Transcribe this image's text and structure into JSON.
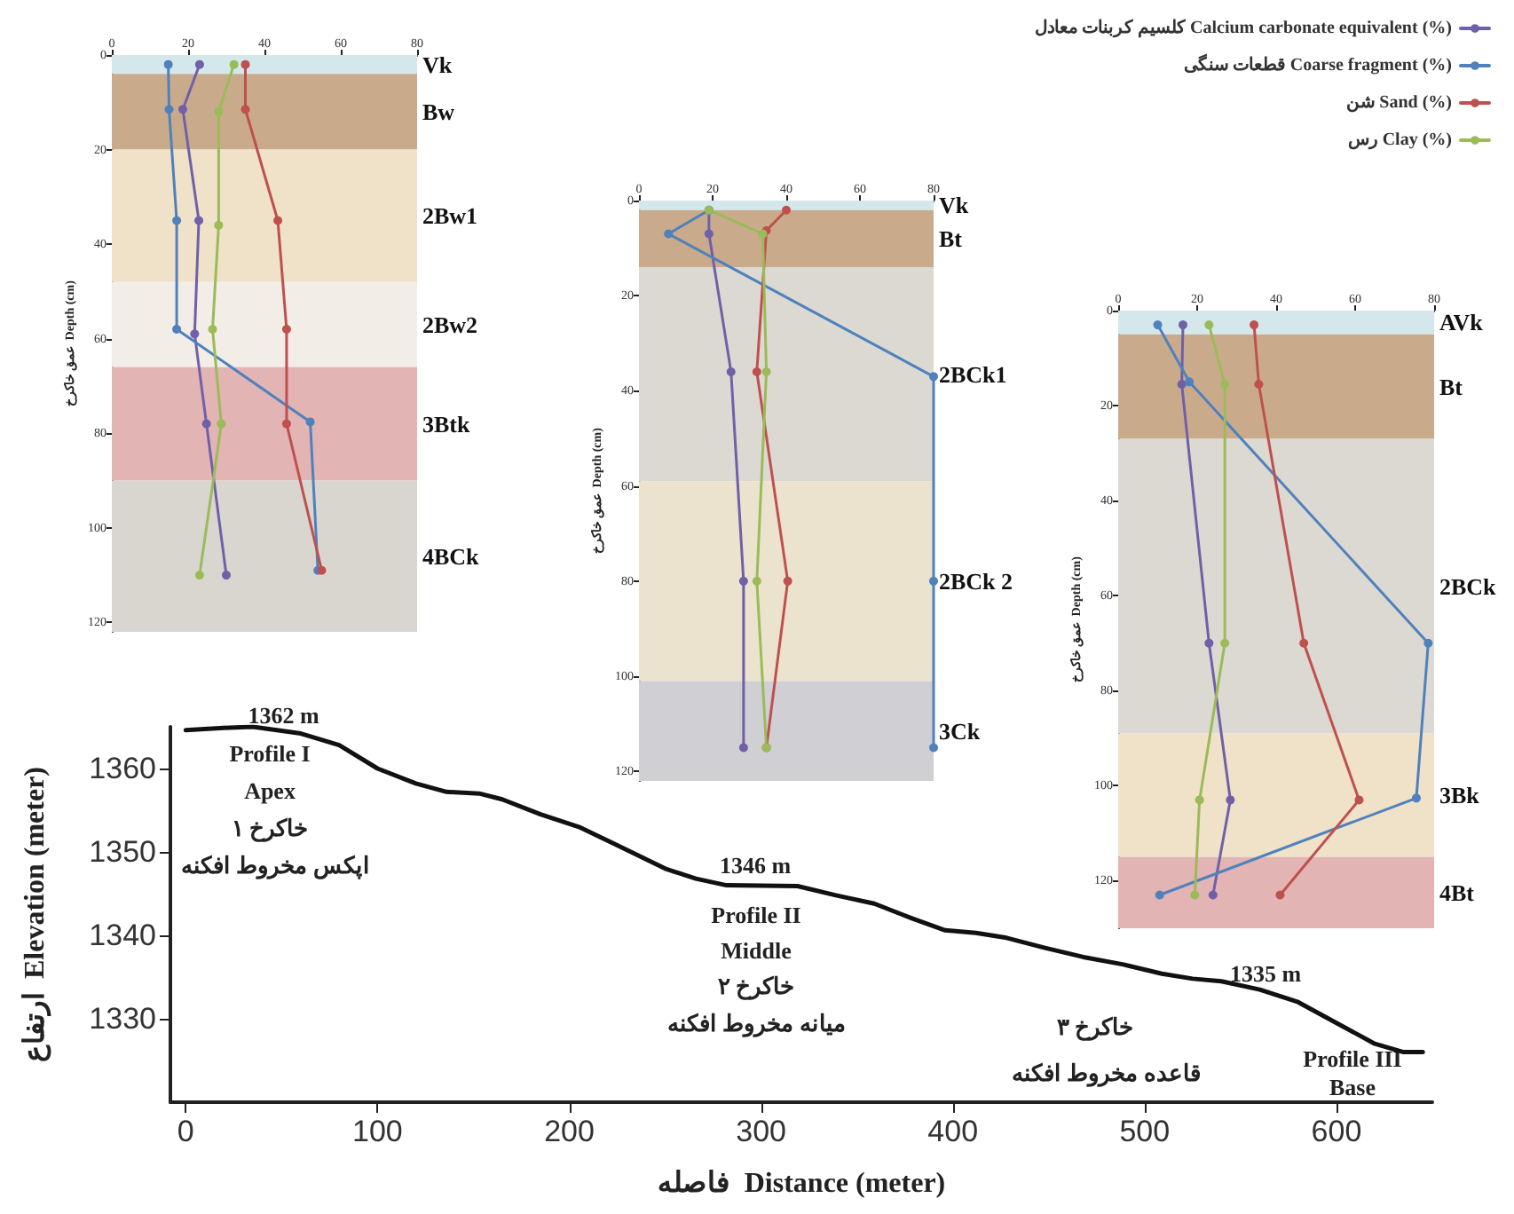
{
  "chart_data": [
    {
      "type": "line",
      "xlabel": "فاصله  Distance (meter)",
      "ylabel": "ارتفاع  Elevation (meter)",
      "xlim": [
        -8,
        650
      ],
      "xticks": [
        0,
        100,
        200,
        300,
        400,
        500,
        600
      ],
      "ylim": [
        1320,
        1365
      ],
      "yticks": [
        1330,
        1340,
        1350,
        1360
      ],
      "grid": false,
      "legend": false,
      "marker": "none",
      "series": [
        {
          "color": "#111111",
          "x": [
            0,
            23,
            35,
            60,
            80,
            100,
            120,
            136,
            153,
            165,
            185,
            205,
            225,
            250,
            266,
            282,
            319,
            339,
            359,
            379,
            396,
            412,
            428,
            448,
            468,
            489,
            509,
            525,
            540,
            560,
            580,
            600,
            620,
            635,
            645
          ],
          "values": [
            1364.6,
            1364.9,
            1365,
            1364.2,
            1362.8,
            1360,
            1358.2,
            1357.2,
            1357,
            1356.3,
            1354.5,
            1353,
            1350.8,
            1348,
            1346.8,
            1346,
            1345.9,
            1344.8,
            1343.8,
            1342,
            1340.6,
            1340.3,
            1339.7,
            1338.5,
            1337.4,
            1336.5,
            1335.4,
            1334.8,
            1334.5,
            1333.5,
            1332,
            1329.5,
            1327,
            1326,
            1326
          ]
        }
      ],
      "annotations": [
        {
          "text": "1362 m",
          "x": 51,
          "y": 1365
        },
        "Profile I",
        "Apex",
        "خاکرخ ۱",
        "اپکس مخروط افکنه",
        {
          "text": "1346 m",
          "x": 297,
          "y": 1347
        },
        "Profile II",
        "Middle",
        "خاکرخ ۲",
        "میانه مخروط افکنه",
        {
          "text": "1335 m",
          "x": 563,
          "y": 1334
        },
        "خاکرخ ۳",
        "Profile III",
        "قاعده مخروط افکنه",
        "Base"
      ]
    },
    {
      "type": "line",
      "ylabel": "عمق خاکرخ  Depth (cm)",
      "xlim": [
        0,
        80
      ],
      "xticks": [
        0,
        20,
        40,
        60,
        80
      ],
      "ylim": [
        122,
        0
      ],
      "yticks": [
        0,
        20,
        40,
        60,
        80,
        100,
        120
      ],
      "grid": false,
      "legend": false,
      "marker": "circle",
      "series": [
        {
          "color": "#7060a8",
          "x": [
            23,
            18.6,
            22.8,
            21.7,
            24.8,
            30
          ],
          "values": [
            2,
            11.5,
            35,
            59,
            78,
            110
          ]
        },
        {
          "color": "#4f81bd",
          "x": [
            14.8,
            15,
            17,
            17,
            52,
            54
          ],
          "values": [
            2,
            11.5,
            35,
            58,
            77.6,
            109
          ]
        },
        {
          "color": "#c0504d",
          "x": [
            35,
            35,
            43.5,
            45.8,
            45.8,
            55
          ],
          "values": [
            2,
            11.5,
            35,
            58,
            78,
            109
          ]
        },
        {
          "color": "#9bbb59",
          "x": [
            32,
            28,
            28,
            26.4,
            28.7,
            23
          ],
          "values": [
            2,
            12,
            36,
            58,
            78,
            110
          ]
        }
      ],
      "bands": [
        {
          "axis": "y",
          "from": 0,
          "to": 4,
          "label": "Vk",
          "color": "#d4e8ec"
        },
        {
          "axis": "y",
          "from": 4,
          "to": 20,
          "label": "Bw",
          "color": "#c9ab8c"
        },
        {
          "axis": "y",
          "from": 20,
          "to": 48,
          "label": "2Bw1",
          "color": "#efe2c8"
        },
        {
          "axis": "y",
          "from": 48,
          "to": 66,
          "label": "2Bw2",
          "color": "#f2ede6"
        },
        {
          "axis": "y",
          "from": 66,
          "to": 90,
          "label": "3Btk",
          "color": "#e2b4b4"
        },
        {
          "axis": "y",
          "from": 90,
          "to": 122,
          "label": "4BCk",
          "color": "#d9d6d0"
        }
      ]
    },
    {
      "type": "line",
      "ylabel": "عمق خاکرخ  Depth (cm)",
      "xlim": [
        0,
        80
      ],
      "xticks": [
        0,
        20,
        40,
        60,
        80
      ],
      "ylim": [
        122,
        0
      ],
      "yticks": [
        0,
        20,
        40,
        60,
        80,
        100,
        120
      ],
      "grid": false,
      "legend": false,
      "marker": "circle",
      "series": [
        {
          "color": "#7060a8",
          "x": [
            19,
            19,
            25,
            28.4,
            28.4
          ],
          "values": [
            2,
            7,
            36,
            80,
            115
          ]
        },
        {
          "color": "#4f81bd",
          "x": [
            19,
            8,
            80,
            80,
            80
          ],
          "values": [
            2,
            7,
            37,
            80,
            115
          ]
        },
        {
          "color": "#c0504d",
          "x": [
            40,
            34.6,
            32,
            40.4,
            34.6
          ],
          "values": [
            2,
            6.3,
            36,
            80,
            115
          ]
        },
        {
          "color": "#9bbb59",
          "x": [
            19,
            33.6,
            34.6,
            32,
            34.6
          ],
          "values": [
            2,
            7,
            36,
            80,
            115
          ]
        }
      ],
      "bands": [
        {
          "axis": "y",
          "from": 0,
          "to": 2,
          "label": "Vk",
          "color": "#d4e8ec"
        },
        {
          "axis": "y",
          "from": 2,
          "to": 14,
          "label": "Bt",
          "color": "#c9ab8c"
        },
        {
          "axis": "y",
          "from": 14,
          "to": 59,
          "label": "2BCk1",
          "color": "#dcd9d2"
        },
        {
          "axis": "y",
          "from": 59,
          "to": 101,
          "label": "2BCk 2",
          "color": "#ece3cf"
        },
        {
          "axis": "y",
          "from": 101,
          "to": 122,
          "label": "3Ck",
          "color": "#cfcfd4"
        }
      ]
    },
    {
      "type": "line",
      "ylabel": "عمق خاکرخ  Depth (cm)",
      "xlim": [
        0,
        80
      ],
      "xticks": [
        0,
        20,
        40,
        60,
        80
      ],
      "ylim": [
        130,
        0
      ],
      "yticks": [
        0,
        20,
        40,
        60,
        80,
        100,
        120
      ],
      "grid": false,
      "legend": "top right",
      "marker": "circle",
      "series": [
        {
          "name": "کلسیم کربنات معادل Calcium carbonate equivalent (%)",
          "color": "#7060a8",
          "x": [
            16.4,
            16.1,
            23,
            28.4,
            24
          ],
          "values": [
            3,
            15.5,
            70,
            103,
            123
          ]
        },
        {
          "name": "قطعات سنگی Coarse fragment (%)",
          "color": "#4f81bd",
          "x": [
            10,
            18,
            78.5,
            75.5,
            10.5
          ],
          "values": [
            3,
            15,
            70,
            102.6,
            123
          ]
        },
        {
          "name": "شن Sand (%)",
          "color": "#c0504d",
          "x": [
            34.4,
            35.6,
            47,
            61,
            41
          ],
          "values": [
            3,
            15.5,
            70,
            103,
            123
          ]
        },
        {
          "name": "رس Clay (%)",
          "color": "#9bbb59",
          "x": [
            23,
            27,
            27,
            20.6,
            19.4
          ],
          "values": [
            3,
            15.5,
            70,
            103,
            123
          ]
        }
      ],
      "bands": [
        {
          "axis": "y",
          "from": 0,
          "to": 5,
          "label": "AVk",
          "color": "#d4e8ec"
        },
        {
          "axis": "y",
          "from": 5,
          "to": 27,
          "label": "Bt",
          "color": "#c9ab8c"
        },
        {
          "axis": "y",
          "from": 27,
          "to": 89,
          "label": "2BCk",
          "color": "#dcd9d2"
        },
        {
          "axis": "y",
          "from": 89,
          "to": 115,
          "label": "3Bk",
          "color": "#efe2c8"
        },
        {
          "axis": "y",
          "from": 115,
          "to": 130,
          "label": "4Bt",
          "color": "#e2b4b4"
        }
      ]
    }
  ]
}
